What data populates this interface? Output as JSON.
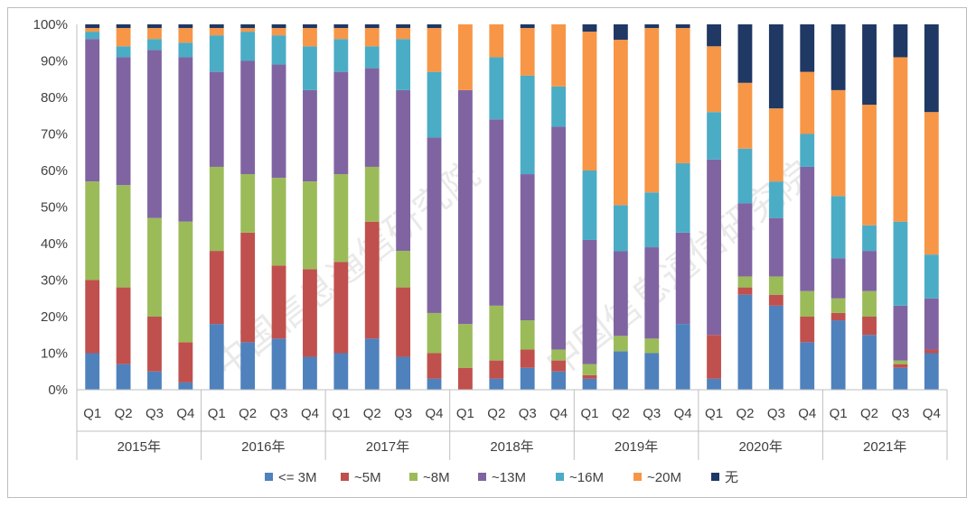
{
  "chart_data": {
    "type": "bar",
    "stacked": true,
    "percent": true,
    "title": "",
    "ylim": [
      0,
      100
    ],
    "y_ticks": [
      "0%",
      "10%",
      "20%",
      "30%",
      "40%",
      "50%",
      "60%",
      "70%",
      "80%",
      "90%",
      "100%"
    ],
    "grid": false,
    "legend_position": "bottom",
    "categories": [
      "2015年 Q1",
      "2015年 Q2",
      "2015年 Q3",
      "2015年 Q4",
      "2016年 Q1",
      "2016年 Q2",
      "2016年 Q3",
      "2016年 Q4",
      "2017年 Q1",
      "2017年 Q2",
      "2017年 Q3",
      "2017年 Q4",
      "2018年 Q1",
      "2018年 Q2",
      "2018年 Q3",
      "2018年 Q4",
      "2019年 Q1",
      "2019年 Q2",
      "2019年 Q3",
      "2019年 Q4",
      "2020年 Q1",
      "2020年 Q2",
      "2020年 Q3",
      "2020年 Q4",
      "2021年 Q1",
      "2021年 Q2",
      "2021年 Q3",
      "2021年 Q4"
    ],
    "quarter_labels": [
      "Q1",
      "Q2",
      "Q3",
      "Q4"
    ],
    "years": [
      "2015年",
      "2016年",
      "2017年",
      "2018年",
      "2019年",
      "2020年",
      "2021年"
    ],
    "series": [
      {
        "name": "<= 3M",
        "color": "#4f81bd",
        "values": [
          10,
          7,
          5,
          2,
          18,
          13,
          14,
          9,
          10,
          14,
          9,
          3,
          0,
          3,
          6,
          5,
          3,
          10,
          10,
          18,
          3,
          26,
          23,
          13,
          19,
          15,
          6,
          10
        ]
      },
      {
        "name": "~5M",
        "color": "#c0504d",
        "values": [
          20,
          21,
          15,
          11,
          20,
          30,
          20,
          24,
          25,
          32,
          19,
          7,
          6,
          5,
          5,
          3,
          1,
          0,
          0,
          0,
          12,
          2,
          3,
          7,
          2,
          5,
          1,
          1
        ]
      },
      {
        "name": "~8M",
        "color": "#9bbb59",
        "values": [
          27,
          28,
          27,
          33,
          23,
          16,
          24,
          24,
          24,
          15,
          10,
          11,
          12,
          15,
          8,
          3,
          3,
          4,
          4,
          0,
          0,
          3,
          5,
          7,
          4,
          7,
          1,
          0
        ]
      },
      {
        "name": "~13M",
        "color": "#8064a2",
        "values": [
          39,
          35,
          46,
          45,
          26,
          31,
          31,
          25,
          28,
          27,
          44,
          48,
          64,
          51,
          40,
          61,
          34,
          22,
          25,
          25,
          48,
          20,
          16,
          34,
          11,
          11,
          15,
          14
        ]
      },
      {
        "name": "~16M",
        "color": "#4bacc6",
        "values": [
          2,
          3,
          3,
          4,
          10,
          8,
          8,
          12,
          9,
          6,
          14,
          18,
          0,
          17,
          27,
          11,
          19,
          12,
          15,
          19,
          13,
          15,
          10,
          9,
          17,
          7,
          23,
          12
        ]
      },
      {
        "name": "~20M",
        "color": "#f79646",
        "values": [
          1,
          5,
          3,
          4,
          2,
          1,
          2,
          5,
          3,
          5,
          3,
          12,
          18,
          9,
          13,
          17,
          38,
          43,
          45,
          37,
          18,
          18,
          20,
          17,
          29,
          33,
          45,
          39
        ]
      },
      {
        "name": "无",
        "color": "#1f3864",
        "values": [
          1,
          1,
          1,
          1,
          1,
          1,
          1,
          1,
          1,
          1,
          1,
          1,
          0,
          0,
          1,
          0,
          2,
          4,
          1,
          1,
          6,
          16,
          23,
          13,
          18,
          22,
          9,
          24
        ]
      }
    ]
  },
  "watermark": {
    "text_left": "中国信息通信研究院",
    "text_right": "中国信息通信研究院"
  }
}
